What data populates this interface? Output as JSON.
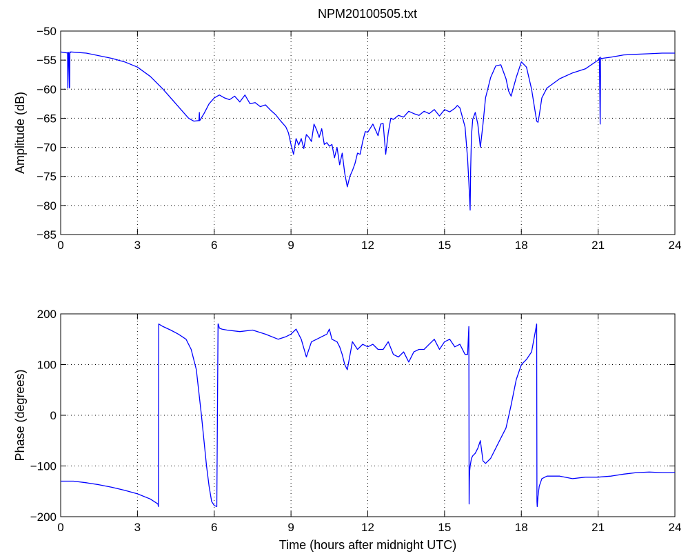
{
  "figure": {
    "title": "NPM20100505.txt"
  },
  "chart_data": [
    {
      "type": "line",
      "title": "NPM20100505.txt",
      "xlabel": "",
      "ylabel": "Amplitude (dB)",
      "xlim": [
        0,
        24
      ],
      "ylim": [
        -85,
        -50
      ],
      "xticks": [
        0,
        3,
        6,
        9,
        12,
        15,
        18,
        21,
        24
      ],
      "yticks": [
        -85,
        -80,
        -75,
        -70,
        -65,
        -60,
        -55,
        -50
      ],
      "grid": true,
      "color": "#0000ff",
      "series": [
        {
          "x": [
            0,
            0.3,
            0.27,
            0.28,
            0.3,
            0.32,
            0.34,
            0.35,
            0.36,
            0.37,
            0.38,
            0.4,
            1,
            2,
            2.5,
            3,
            3.5,
            4,
            4.5,
            5,
            5.2,
            5.4,
            5.42,
            5.43,
            5.45,
            5.6,
            5.8,
            6,
            6.2,
            6.4,
            6.6,
            6.8,
            7,
            7.2,
            7.4,
            7.6,
            7.8,
            8,
            8.2,
            8.4,
            8.6,
            8.8,
            8.9,
            9,
            9.1,
            9.2,
            9.3,
            9.4,
            9.5,
            9.6,
            9.7,
            9.8,
            9.9,
            10,
            10.1,
            10.2,
            10.3,
            10.4,
            10.5,
            10.6,
            10.7,
            10.8,
            10.9,
            11,
            11.1,
            11.2,
            11.3,
            11.4,
            11.5,
            11.6,
            11.7,
            11.8,
            11.9,
            12,
            12.2,
            12.4,
            12.5,
            12.6,
            12.7,
            12.8,
            12.9,
            13,
            13.2,
            13.4,
            13.6,
            13.8,
            14,
            14.2,
            14.4,
            14.6,
            14.8,
            15,
            15.2,
            15.4,
            15.5,
            15.6,
            15.8,
            15.9,
            15.95,
            16,
            16.02,
            16.05,
            16.1,
            16.2,
            16.3,
            16.4,
            16.5,
            16.6,
            16.8,
            17,
            17.2,
            17.4,
            17.5,
            17.6,
            17.8,
            18,
            18.2,
            18.4,
            18.6,
            18.65,
            18.7,
            18.8,
            19,
            19.5,
            20,
            20.5,
            21,
            21.05,
            21.08,
            21.1,
            21.12,
            21.15,
            21.5,
            22,
            22.5,
            23,
            23.5,
            24
          ],
          "y": [
            -53.6,
            -53.8,
            -53.7,
            -59.8,
            -53.7,
            -53.7,
            -59.8,
            -59.6,
            -53.7,
            -53.6,
            -53.7,
            -53.6,
            -53.8,
            -54.7,
            -55.3,
            -56.2,
            -57.8,
            -60,
            -62.5,
            -65,
            -65.5,
            -65.4,
            -64,
            -65.4,
            -65.3,
            -64.2,
            -62.5,
            -61.5,
            -61,
            -61.5,
            -61.8,
            -61.2,
            -62.2,
            -61,
            -62.5,
            -62.3,
            -63,
            -62.7,
            -63.6,
            -64.4,
            -65.5,
            -66.5,
            -67.5,
            -69.5,
            -71.2,
            -68.5,
            -69.6,
            -68.5,
            -70.2,
            -67.8,
            -68.3,
            -69,
            -66,
            -67,
            -68.3,
            -66.8,
            -69.5,
            -69.2,
            -69.8,
            -69.5,
            -71.8,
            -70,
            -73,
            -71,
            -74.5,
            -76.8,
            -75,
            -74,
            -72.8,
            -71,
            -71.2,
            -69,
            -67.3,
            -67.4,
            -66,
            -68,
            -66,
            -65.9,
            -71.2,
            -67.5,
            -65,
            -65.2,
            -64.5,
            -64.8,
            -63.8,
            -64.2,
            -64.5,
            -63.8,
            -64.2,
            -63.5,
            -64.6,
            -63.5,
            -63.9,
            -63.3,
            -62.8,
            -63.2,
            -66.5,
            -72,
            -76,
            -80.8,
            -74,
            -68,
            -65.2,
            -64,
            -66,
            -70,
            -66,
            -61.5,
            -58,
            -56,
            -55.8,
            -58.2,
            -60.3,
            -61.2,
            -58,
            -55.3,
            -56.2,
            -60,
            -65.5,
            -65.7,
            -64.5,
            -61.5,
            -59.8,
            -58.2,
            -57.2,
            -56.5,
            -55,
            -54.6,
            -66,
            -54.5,
            -54.8,
            -54.7,
            -54.5,
            -54.1,
            -54,
            -53.9,
            -53.8,
            -53.8
          ],
          "raw_coordinates": false
        }
      ]
    },
    {
      "type": "line",
      "title": "",
      "xlabel": "Time (hours after midnight UTC)",
      "ylabel": "Phase (degrees)",
      "xlim": [
        0,
        24
      ],
      "ylim": [
        -200,
        200
      ],
      "xticks": [
        0,
        3,
        6,
        9,
        12,
        15,
        18,
        21,
        24
      ],
      "yticks": [
        -200,
        -100,
        0,
        100,
        200
      ],
      "grid": true,
      "color": "#0000ff",
      "series": [
        {
          "x": [
            0,
            0.5,
            1,
            1.5,
            2,
            2.5,
            3,
            3.5,
            3.8,
            3.82,
            3.83,
            4,
            4.3,
            4.6,
            4.9,
            5.1,
            5.3,
            5.5,
            5.6,
            5.7,
            5.8,
            5.9,
            6,
            6.1,
            6.15,
            6.16,
            6.2,
            6.3,
            6.5,
            7,
            7.5,
            8,
            8.5,
            8.8,
            9,
            9.2,
            9.4,
            9.6,
            9.8,
            10,
            10.2,
            10.4,
            10.5,
            10.6,
            10.8,
            10.9,
            11,
            11.1,
            11.2,
            11.4,
            11.6,
            11.8,
            12,
            12.2,
            12.4,
            12.6,
            12.8,
            13,
            13.2,
            13.4,
            13.6,
            13.8,
            14,
            14.2,
            14.4,
            14.6,
            14.8,
            15,
            15.2,
            15.4,
            15.6,
            15.8,
            15.9,
            15.95,
            15.96,
            15.97,
            15.98,
            16,
            16.05,
            16.1,
            16.2,
            16.3,
            16.4,
            16.5,
            16.6,
            16.8,
            17,
            17.2,
            17.4,
            17.6,
            17.8,
            18,
            18.2,
            18.4,
            18.6,
            18.61,
            18.62,
            18.65,
            18.7,
            18.8,
            19,
            19.5,
            20,
            20.5,
            21,
            21.5,
            22,
            22.5,
            23,
            23.5,
            24
          ],
          "y": [
            -130,
            -130,
            -133,
            -137,
            -142,
            -148,
            -155,
            -165,
            -175,
            -180,
            180,
            175,
            168,
            160,
            150,
            130,
            90,
            0,
            -50,
            -100,
            -140,
            -170,
            -178,
            -180,
            180,
            180,
            172,
            170,
            168,
            165,
            168,
            160,
            150,
            155,
            160,
            170,
            150,
            115,
            145,
            150,
            155,
            160,
            170,
            150,
            145,
            135,
            120,
            100,
            90,
            145,
            130,
            140,
            135,
            140,
            130,
            130,
            145,
            120,
            115,
            125,
            105,
            125,
            130,
            130,
            140,
            150,
            130,
            145,
            150,
            135,
            140,
            120,
            120,
            175,
            -175,
            -130,
            -110,
            -100,
            -85,
            -80,
            -75,
            -65,
            -50,
            -90,
            -95,
            -85,
            -65,
            -45,
            -25,
            20,
            70,
            100,
            110,
            125,
            180,
            -170,
            -180,
            -160,
            -140,
            -125,
            -120,
            -120,
            -125,
            -122,
            -122,
            -120,
            -116,
            -113,
            -112,
            -113,
            -113
          ],
          "raw_coordinates": false
        }
      ]
    }
  ]
}
